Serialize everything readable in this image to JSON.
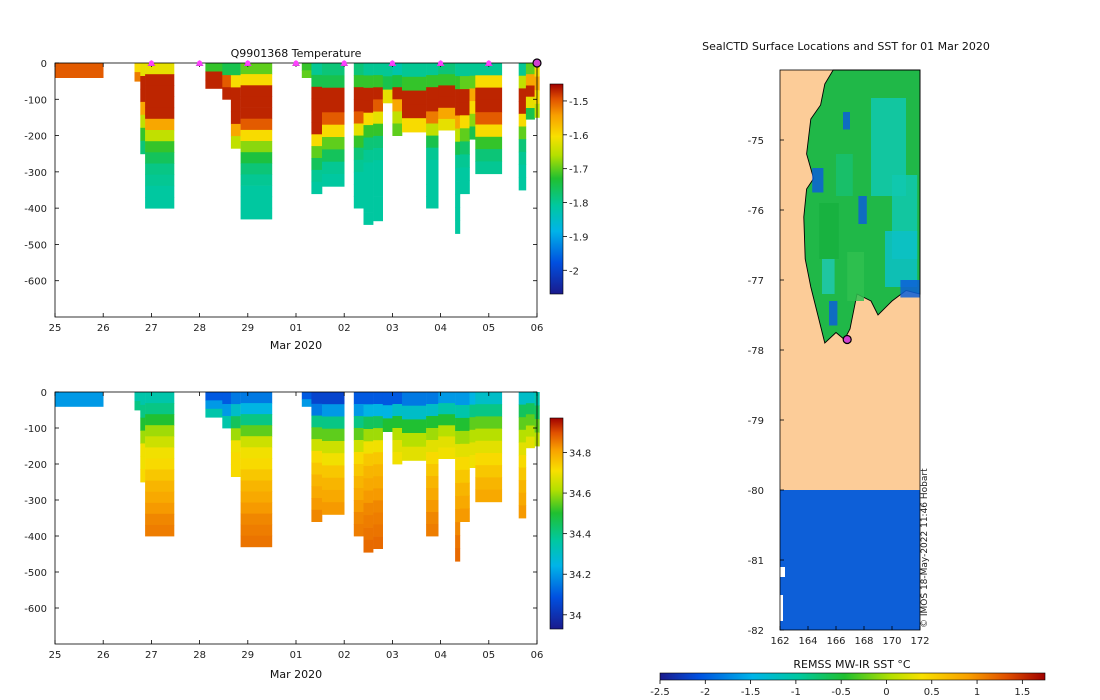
{
  "chart_data": [
    {
      "type": "heatmap",
      "title": "Q9901368  Temperature",
      "xlabel": "Mar 2020",
      "x_ticks": [
        "25",
        "26",
        "27",
        "28",
        "29",
        "01",
        "02",
        "03",
        "04",
        "05",
        "06"
      ],
      "y_ticks": [
        "0",
        "-100",
        "-200",
        "-300",
        "-400",
        "-500",
        "-600"
      ],
      "ylim": [
        -700,
        0
      ],
      "colorbar_ticks": [
        "-1.5",
        "-1.6",
        "-1.7",
        "-1.8",
        "-1.9",
        "-2"
      ],
      "colorbar_range": [
        -2.07,
        -1.45
      ],
      "profile_markers_days": [
        2,
        3,
        4,
        5,
        6,
        7,
        8,
        9,
        10
      ],
      "current_marker_day": 10,
      "profiles": [
        {
          "day": 0.0,
          "w": 1.0,
          "depth": 40,
          "values": [
            -1.5,
            -1.5
          ]
        },
        {
          "day": 1.65,
          "w": 0.12,
          "depth": 50,
          "values": [
            -1.6,
            -1.52
          ]
        },
        {
          "day": 1.77,
          "w": 0.1,
          "depth": 250,
          "values": [
            -1.62,
            -1.47,
            -1.47,
            -1.55,
            -1.65,
            -1.72,
            -1.78
          ]
        },
        {
          "day": 1.87,
          "w": 0.6,
          "depth": 400,
          "values": [
            -1.62,
            -1.47,
            -1.47,
            -1.47,
            -1.47,
            -1.55,
            -1.65,
            -1.72,
            -1.76,
            -1.79,
            -1.8,
            -1.81,
            -1.81
          ]
        },
        {
          "day": 3.12,
          "w": 0.35,
          "depth": 70,
          "values": [
            -1.72,
            -1.47,
            -1.47
          ]
        },
        {
          "day": 3.47,
          "w": 0.18,
          "depth": 100,
          "values": [
            -1.75,
            -1.5,
            -1.47
          ]
        },
        {
          "day": 3.65,
          "w": 0.2,
          "depth": 235,
          "values": [
            -1.75,
            -1.6,
            -1.47,
            -1.47,
            -1.47,
            -1.55,
            -1.65
          ]
        },
        {
          "day": 3.85,
          "w": 0.65,
          "depth": 430,
          "values": [
            -1.7,
            -1.6,
            -1.47,
            -1.47,
            -1.47,
            -1.5,
            -1.6,
            -1.68,
            -1.74,
            -1.78,
            -1.8,
            -1.81,
            -1.81,
            -1.81
          ]
        },
        {
          "day": 5.12,
          "w": 0.2,
          "depth": 40,
          "values": [
            -1.72,
            -1.7
          ]
        },
        {
          "day": 5.32,
          "w": 0.22,
          "depth": 360,
          "values": [
            -1.8,
            -1.75,
            -1.47,
            -1.47,
            -1.47,
            -1.47,
            -1.6,
            -1.7,
            -1.76,
            -1.8,
            -1.81
          ]
        },
        {
          "day": 5.54,
          "w": 0.46,
          "depth": 340,
          "values": [
            -1.78,
            -1.75,
            -1.47,
            -1.47,
            -1.5,
            -1.6,
            -1.7,
            -1.76,
            -1.8,
            -1.81
          ]
        },
        {
          "day": 6.2,
          "w": 0.2,
          "depth": 400,
          "values": [
            -1.78,
            -1.72,
            -1.47,
            -1.47,
            -1.5,
            -1.62,
            -1.72,
            -1.78,
            -1.8,
            -1.81,
            -1.81,
            -1.81
          ]
        },
        {
          "day": 6.4,
          "w": 0.2,
          "depth": 445,
          "values": [
            -1.8,
            -1.72,
            -1.47,
            -1.47,
            -1.6,
            -1.72,
            -1.78,
            -1.8,
            -1.81,
            -1.81,
            -1.81,
            -1.81,
            -1.81
          ]
        },
        {
          "day": 6.6,
          "w": 0.2,
          "depth": 435,
          "values": [
            -1.8,
            -1.72,
            -1.47,
            -1.5,
            -1.62,
            -1.72,
            -1.78,
            -1.8,
            -1.81,
            -1.81,
            -1.81,
            -1.81,
            -1.81
          ]
        },
        {
          "day": 6.8,
          "w": 0.2,
          "depth": 110,
          "values": [
            -1.8,
            -1.75,
            -1.62
          ]
        },
        {
          "day": 7.0,
          "w": 0.2,
          "depth": 200,
          "values": [
            -1.82,
            -1.74,
            -1.47,
            -1.55,
            -1.65,
            -1.7
          ]
        },
        {
          "day": 7.2,
          "w": 0.5,
          "depth": 190,
          "values": [
            -1.8,
            -1.72,
            -1.47,
            -1.47,
            -1.6
          ]
        },
        {
          "day": 7.7,
          "w": 0.25,
          "depth": 400,
          "values": [
            -1.8,
            -1.72,
            -1.47,
            -1.47,
            -1.52,
            -1.65,
            -1.75,
            -1.8,
            -1.81,
            -1.81,
            -1.81,
            -1.81
          ]
        },
        {
          "day": 7.95,
          "w": 0.35,
          "depth": 185,
          "values": [
            -1.78,
            -1.72,
            -1.47,
            -1.47,
            -1.55,
            -1.62
          ]
        },
        {
          "day": 8.3,
          "w": 0.1,
          "depth": 470,
          "values": [
            -1.8,
            -1.72,
            -1.47,
            -1.47,
            -1.55,
            -1.65,
            -1.75,
            -1.8,
            -1.81,
            -1.81,
            -1.81,
            -1.81,
            -1.81
          ]
        },
        {
          "day": 8.4,
          "w": 0.2,
          "depth": 360,
          "values": [
            -1.8,
            -1.7,
            -1.47,
            -1.47,
            -1.6,
            -1.7,
            -1.77,
            -1.8,
            -1.81,
            -1.81
          ]
        },
        {
          "day": 8.6,
          "w": 0.12,
          "depth": 210,
          "values": [
            -1.8,
            -1.7,
            -1.55,
            -1.6,
            -1.68,
            -1.75
          ]
        },
        {
          "day": 8.72,
          "w": 0.55,
          "depth": 305,
          "values": [
            -1.8,
            -1.6,
            -1.47,
            -1.47,
            -1.5,
            -1.6,
            -1.72,
            -1.78,
            -1.8
          ]
        },
        {
          "day": 9.62,
          "w": 0.15,
          "depth": 350,
          "values": [
            -1.8,
            -1.65,
            -1.47,
            -1.47,
            -1.6,
            -1.7,
            -1.78,
            -1.8,
            -1.81,
            -1.81
          ]
        },
        {
          "day": 9.77,
          "w": 0.18,
          "depth": 155,
          "values": [
            -1.7,
            -1.55,
            -1.47,
            -1.62,
            -1.75
          ]
        },
        {
          "day": 9.95,
          "w": 0.1,
          "depth": 150,
          "values": [
            -1.6,
            -1.55,
            -1.6,
            -1.65
          ]
        }
      ]
    },
    {
      "type": "heatmap",
      "title": "",
      "xlabel": "Mar 2020",
      "x_ticks": [
        "25",
        "26",
        "27",
        "28",
        "29",
        "01",
        "02",
        "03",
        "04",
        "05",
        "06"
      ],
      "y_ticks": [
        "0",
        "-100",
        "-200",
        "-300",
        "-400",
        "-500",
        "-600"
      ],
      "ylim": [
        -700,
        0
      ],
      "colorbar_ticks": [
        "34.8",
        "34.6",
        "34.4",
        "34.2",
        "34"
      ],
      "colorbar_range": [
        33.93,
        34.97
      ],
      "profiles": [
        {
          "day": 0.0,
          "w": 1.0,
          "depth": 40,
          "values": [
            34.2,
            34.2
          ]
        },
        {
          "day": 1.65,
          "w": 0.12,
          "depth": 50,
          "values": [
            34.35,
            34.4
          ]
        },
        {
          "day": 1.77,
          "w": 0.1,
          "depth": 250,
          "values": [
            34.35,
            34.4,
            34.5,
            34.6,
            34.7,
            34.7,
            34.72
          ]
        },
        {
          "day": 1.87,
          "w": 0.6,
          "depth": 400,
          "values": [
            34.35,
            34.4,
            34.5,
            34.6,
            34.65,
            34.7,
            34.72,
            34.75,
            34.78,
            34.8,
            34.82,
            34.84,
            34.85
          ]
        },
        {
          "day": 3.12,
          "w": 0.35,
          "depth": 70,
          "values": [
            34.1,
            34.2,
            34.35
          ]
        },
        {
          "day": 3.47,
          "w": 0.18,
          "depth": 100,
          "values": [
            34.1,
            34.2,
            34.35
          ]
        },
        {
          "day": 3.65,
          "w": 0.2,
          "depth": 235,
          "values": [
            34.15,
            34.3,
            34.45,
            34.6,
            34.7,
            34.72,
            34.72
          ]
        },
        {
          "day": 3.85,
          "w": 0.65,
          "depth": 430,
          "values": [
            34.15,
            34.25,
            34.4,
            34.55,
            34.65,
            34.7,
            34.72,
            34.75,
            34.78,
            34.8,
            34.82,
            34.84,
            34.85,
            34.86
          ]
        },
        {
          "day": 5.12,
          "w": 0.2,
          "depth": 40,
          "values": [
            34.1,
            34.2
          ]
        },
        {
          "day": 5.32,
          "w": 0.22,
          "depth": 360,
          "values": [
            34.05,
            34.15,
            34.4,
            34.55,
            34.65,
            34.72,
            34.75,
            34.78,
            34.8,
            34.82,
            34.84
          ]
        },
        {
          "day": 5.54,
          "w": 0.46,
          "depth": 340,
          "values": [
            34.05,
            34.2,
            34.4,
            34.55,
            34.65,
            34.7,
            34.75,
            34.78,
            34.8,
            34.82
          ]
        },
        {
          "day": 6.2,
          "w": 0.2,
          "depth": 400,
          "values": [
            34.1,
            34.2,
            34.4,
            34.55,
            34.65,
            34.72,
            34.75,
            34.78,
            34.8,
            34.82,
            34.84,
            34.85
          ]
        },
        {
          "day": 6.4,
          "w": 0.2,
          "depth": 445,
          "values": [
            34.1,
            34.25,
            34.45,
            34.6,
            34.7,
            34.75,
            34.78,
            34.8,
            34.82,
            34.84,
            34.85,
            34.86,
            34.87
          ]
        },
        {
          "day": 6.6,
          "w": 0.2,
          "depth": 435,
          "values": [
            34.1,
            34.25,
            34.45,
            34.6,
            34.7,
            34.75,
            34.78,
            34.8,
            34.82,
            34.84,
            34.85,
            34.86,
            34.87
          ]
        },
        {
          "day": 6.8,
          "w": 0.2,
          "depth": 110,
          "values": [
            34.1,
            34.25,
            34.5
          ]
        },
        {
          "day": 7.0,
          "w": 0.2,
          "depth": 200,
          "values": [
            34.1,
            34.3,
            34.5,
            34.62,
            34.68,
            34.7
          ]
        },
        {
          "day": 7.2,
          "w": 0.5,
          "depth": 190,
          "values": [
            34.15,
            34.3,
            34.5,
            34.62,
            34.68
          ]
        },
        {
          "day": 7.7,
          "w": 0.25,
          "depth": 400,
          "values": [
            34.15,
            34.3,
            34.5,
            34.6,
            34.68,
            34.72,
            34.75,
            34.78,
            34.8,
            34.82,
            34.84,
            34.85
          ]
        },
        {
          "day": 7.95,
          "w": 0.35,
          "depth": 185,
          "values": [
            34.2,
            34.35,
            34.5,
            34.62,
            34.68,
            34.7
          ]
        },
        {
          "day": 8.3,
          "w": 0.1,
          "depth": 470,
          "values": [
            34.2,
            34.35,
            34.5,
            34.6,
            34.68,
            34.72,
            34.75,
            34.78,
            34.8,
            34.82,
            34.84,
            34.86,
            34.87
          ]
        },
        {
          "day": 8.4,
          "w": 0.2,
          "depth": 360,
          "values": [
            34.2,
            34.35,
            34.5,
            34.6,
            34.68,
            34.72,
            34.75,
            34.78,
            34.8,
            34.82
          ]
        },
        {
          "day": 8.6,
          "w": 0.12,
          "depth": 210,
          "values": [
            34.25,
            34.4,
            34.55,
            34.62,
            34.68,
            34.7
          ]
        },
        {
          "day": 8.72,
          "w": 0.55,
          "depth": 305,
          "values": [
            34.3,
            34.4,
            34.55,
            34.62,
            34.68,
            34.72,
            34.75,
            34.78,
            34.8
          ]
        },
        {
          "day": 9.62,
          "w": 0.15,
          "depth": 350,
          "values": [
            34.3,
            34.45,
            34.55,
            34.62,
            34.68,
            34.72,
            34.75,
            34.78,
            34.8,
            34.82
          ]
        },
        {
          "day": 9.77,
          "w": 0.18,
          "depth": 155,
          "values": [
            34.3,
            34.45,
            34.55,
            34.62,
            34.68
          ]
        },
        {
          "day": 9.95,
          "w": 0.1,
          "depth": 150,
          "values": [
            34.35,
            34.45,
            34.55,
            34.62
          ]
        }
      ]
    },
    {
      "type": "heatmap",
      "title": "SealCTD Surface Locations and SST for 01 Mar 2020",
      "xlabel": "",
      "x_ticks": [
        "162",
        "164",
        "166",
        "168",
        "170",
        "172"
      ],
      "y_ticks": [
        "-75",
        "-76",
        "-77",
        "-78",
        "-79",
        "-80",
        "-81",
        "-82"
      ],
      "xlim": [
        162,
        172
      ],
      "ylim": [
        -82,
        -74
      ],
      "colorbar_label": "REMSS MW-IR SST °C",
      "colorbar_ticks": [
        "-2.5",
        "-2",
        "-1.5",
        "-1",
        "-0.5",
        "0",
        "0.5",
        "1",
        "1.5"
      ],
      "colorbar_range": [
        -2.5,
        1.75
      ],
      "land_color": "#fccc98",
      "ice_color": "#0d5fd8",
      "ice_boundary_lat": -80,
      "seal_position": {
        "lon": 166.8,
        "lat": -77.85
      },
      "watermark": "© IMOS 18-May-2022 11:46 Hobart"
    }
  ]
}
